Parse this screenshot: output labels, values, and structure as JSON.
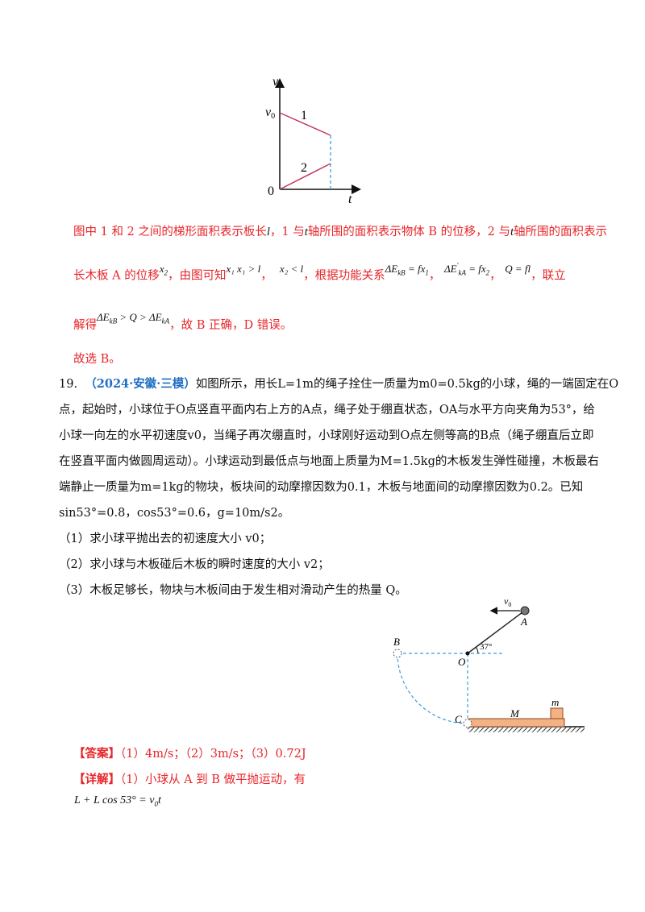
{
  "graph1": {
    "axis_v": "v",
    "axis_t": "t",
    "v0": "v",
    "v0_sub": "0",
    "origin": "0",
    "line1": "1",
    "line2": "2"
  },
  "prev_solution": {
    "p1": "图中 1 和 2 之间的梯形面积表示板长",
    "p1_l": "l",
    "p1_b": "，1 与",
    "p1_t1": "t",
    "p1_c": "轴所围的面积表示物体 B 的位移，2 与",
    "p1_t2": "t",
    "p1_d": "轴所围的面积表示",
    "p2_a": "长木板 A 的位移",
    "p2_x2": "x",
    "p2_x2_sub": "2",
    "p2_b": "，由图可知",
    "p2_ineq1": "x₁ x₁ > l",
    "p2_comma1": "，",
    "p2_ineq2": "x₂ < l",
    "p2_c": "，根据功能关系",
    "p2_eq1": "ΔE",
    "p2_eq1_sub": "kB",
    "p2_eq1_rhs": " = fx",
    "p2_eq1_rhs_sub": "1",
    "p2_eq2": "ΔE",
    "p2_eq2_sup": "'",
    "p2_eq2_sub": "kA",
    "p2_eq2_rhs": " = fx",
    "p2_eq2_rhs_sub": "2",
    "p2_eq3": "Q = fl",
    "p2_d": "，联立",
    "p3_a": "解得",
    "p3_eq": "ΔE",
    "p3_eq_sub": "kB",
    "p3_eq_mid": " > Q > ΔE",
    "p3_eq_sub2": "kA",
    "p3_b": "，故 B 正确，D 错误。",
    "p4": "故选 B。"
  },
  "question": {
    "number": "19.",
    "source": "（2024·安徽·三模）",
    "lines": [
      "如图所示，用长L=1m的绳子拴住一质量为m0=0.5kg的小球，绳的一端固定在O",
      "点，起始时，小球位于O点竖直平面内右上方的A点，绳子处于绷直状态，OA与水平方向夹角为53°，给",
      "小球一向左的水平初速度v0，当绳子再次绷直时，小球刚好运动到O点左侧等高的B点（绳子绷直后立即",
      "在竖直平面内做圆周运动）。小球运动到最低点与地面上质量为M=1.5kg的木板发生弹性碰撞，木板最右",
      "端静止一质量为m=1kg的物块，板块间的动摩擦因数为0.1，木板与地面间的动摩擦因数为0.2。已知",
      "sin53°=0.8，cos53°=0.6，g=10m/s2。"
    ],
    "sub1": "（1）求小球平抛出去的初速度大小 v0；",
    "sub2": "（2）求小球与木板碰后木板的瞬时速度的大小 v2；",
    "sub3": "（3）木板足够长，物块与木板间由于发生相对滑动产生的热量 Q。"
  },
  "figure2": {
    "v0": "v",
    "v0_sub": "0",
    "A": "A",
    "B": "B",
    "O": "O",
    "C": "C",
    "M": "M",
    "m": "m",
    "angle": "37°"
  },
  "answer": {
    "tag": "【答案】",
    "text": "（1）4m/s；（2）3m/s；（3）0.72J"
  },
  "detail": {
    "tag": "【详解】",
    "text": "（1）小球从 A 到 B 做平抛运动，有",
    "equation": "L + L cos 53° = v",
    "equation_sub": "0",
    "equation_end": "t"
  },
  "colors": {
    "red": "#e8252a",
    "blue": "#1f6fc4",
    "graph_line": "#c2395b",
    "dashed": "#3aa0d8",
    "board": "#f4b183"
  }
}
